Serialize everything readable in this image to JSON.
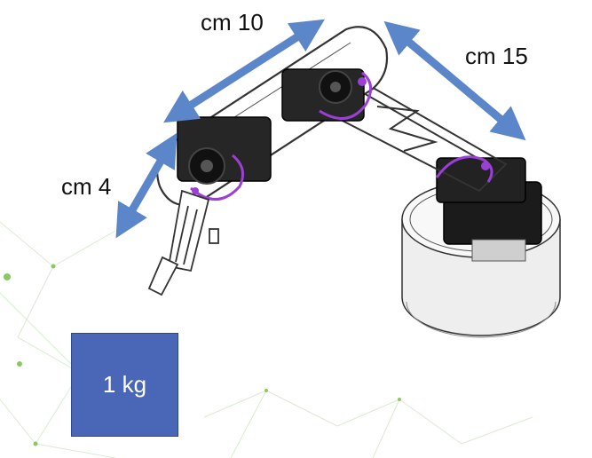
{
  "labels": {
    "segment_upper": "cm 10",
    "segment_fore": "cm 15",
    "segment_gripper": "cm 4"
  },
  "weight": {
    "text": "1 kg",
    "color": "#4a66b7"
  },
  "colors": {
    "arrow": "#5b86c9",
    "joint_highlight": "#9b3fd6",
    "outline": "#333333"
  }
}
